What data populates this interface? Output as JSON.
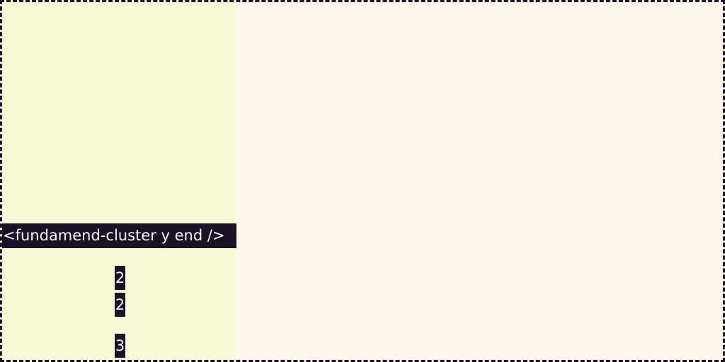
{
  "component_tag": "<fundamend-cluster y end />",
  "numbers": [
    "2",
    "2",
    "3"
  ],
  "colors": {
    "page_background": "#fdf6ea",
    "left_panel_background": "#f7fad6",
    "badge_background": "#1c1226",
    "badge_text": "#f7f3ff",
    "border": "#1c1226"
  }
}
